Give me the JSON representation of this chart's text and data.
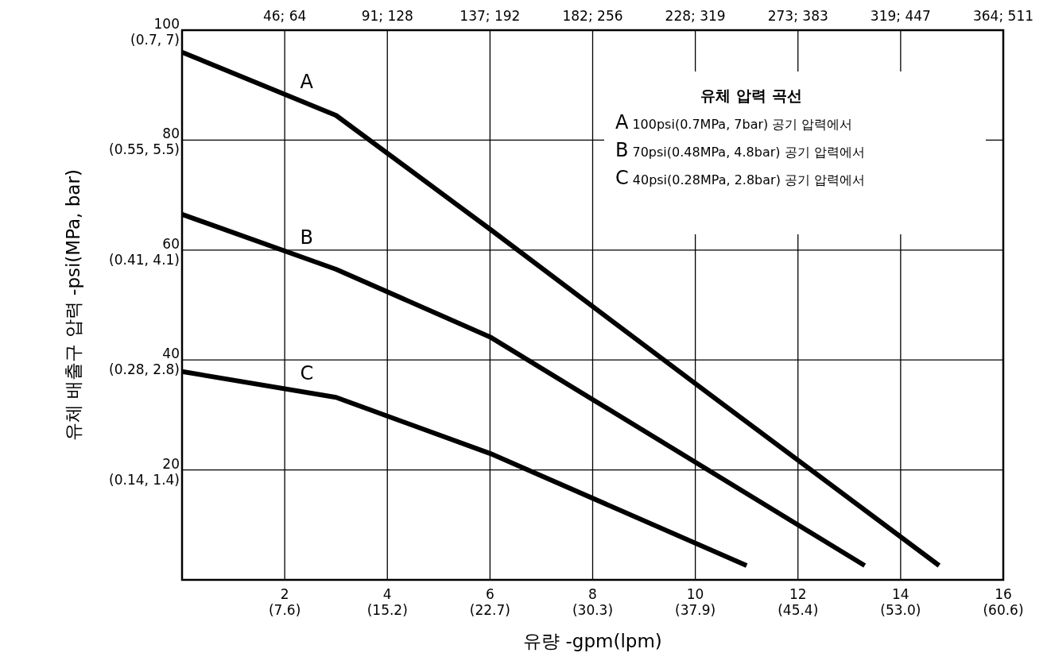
{
  "chart_data": {
    "type": "line",
    "xlabel": "유량 -gpm(lpm)",
    "ylabel": "유체 배출구 압력 -psi(MPa, bar)",
    "xlim": [
      0,
      16
    ],
    "ylim": [
      0,
      100
    ],
    "xticks": [
      2,
      4,
      6,
      8,
      10,
      12,
      14,
      16
    ],
    "yticks": [
      20,
      40,
      60,
      80,
      100
    ],
    "grid": true,
    "series": [
      {
        "name": "A",
        "color": "#000000",
        "x": [
          0,
          3,
          6,
          10,
          14.75
        ],
        "values": [
          96,
          84.5,
          63.8,
          35.7,
          2.6
        ]
      },
      {
        "name": "B",
        "color": "#000000",
        "x": [
          0,
          3,
          6,
          13.3
        ],
        "values": [
          66.5,
          56.5,
          44.2,
          2.6
        ]
      },
      {
        "name": "C",
        "color": "#000000",
        "x": [
          0,
          3,
          6,
          11
        ],
        "values": [
          37.9,
          33.2,
          23,
          2.6
        ]
      }
    ],
    "annotations": [
      "유체 압력 곡선",
      "A 100psi(0.7MPa, 7bar) 공기 압력에서",
      "B 70psi(0.48MPa, 4.8bar) 공기 압력에서",
      "C 40psi(0.28MPa, 2.8bar) 공기 압력에서",
      "(7.6)",
      "(15.2)",
      "(22.7)",
      "(30.3)",
      "(37.9)",
      "(45.4)",
      "(53.0)",
      "(60.6)",
      "46; 64",
      "91; 128",
      "137; 192",
      "182; 256",
      "228; 319",
      "273; 383",
      "319; 447",
      "364; 511",
      "(0.14, 1.4)",
      "(0.28, 2.8)",
      "(0.41, 4.1)",
      "(0.55, 5.5)",
      "(0.7, 7)"
    ]
  }
}
